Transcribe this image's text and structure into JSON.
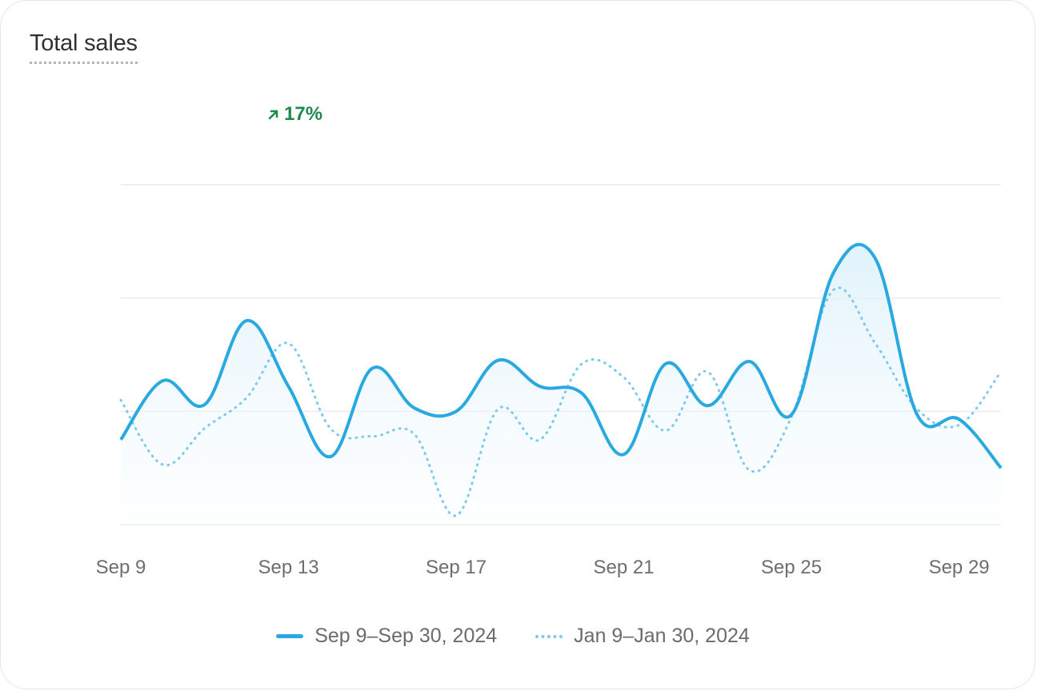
{
  "card": {
    "title": "Total sales",
    "change_label": "17%",
    "change_direction": "up",
    "change_color": "#1e8a4c"
  },
  "chart_data": {
    "type": "line",
    "title": "Total sales",
    "x_tick_labels": [
      "Sep 9",
      "Sep 13",
      "Sep 17",
      "Sep 21",
      "Sep 25",
      "Sep 29"
    ],
    "x_tick_days": [
      9,
      13,
      17,
      21,
      25,
      29
    ],
    "x_range": [
      9,
      30
    ],
    "ylim": [
      0,
      3
    ],
    "grid": true,
    "legend_position": "bottom-center",
    "series": [
      {
        "name": "Sep 9–Sep 30, 2024",
        "style": "solid",
        "color": "#2aa9e0",
        "days": [
          9,
          10,
          11,
          12,
          13,
          14,
          15,
          16,
          17,
          18,
          19,
          20,
          21,
          22,
          23,
          24,
          25,
          26,
          27,
          28,
          29,
          30
        ],
        "values": [
          0.75,
          1.27,
          1.06,
          1.8,
          1.22,
          0.6,
          1.38,
          1.03,
          1.0,
          1.45,
          1.22,
          1.16,
          0.62,
          1.42,
          1.05,
          1.44,
          0.97,
          2.22,
          2.35,
          0.97,
          0.93,
          0.5
        ]
      },
      {
        "name": "Jan 9–Jan 30, 2024",
        "style": "dotted",
        "color": "#7ccbed",
        "days": [
          9,
          10,
          11,
          12,
          13,
          14,
          15,
          16,
          17,
          18,
          19,
          20,
          21,
          22,
          23,
          24,
          25,
          26,
          27,
          28,
          29,
          30
        ],
        "values": [
          1.1,
          0.53,
          0.85,
          1.12,
          1.6,
          0.85,
          0.78,
          0.8,
          0.08,
          1.02,
          0.75,
          1.42,
          1.3,
          0.83,
          1.35,
          0.48,
          0.95,
          2.07,
          1.6,
          1.02,
          0.88,
          1.35
        ]
      }
    ]
  }
}
